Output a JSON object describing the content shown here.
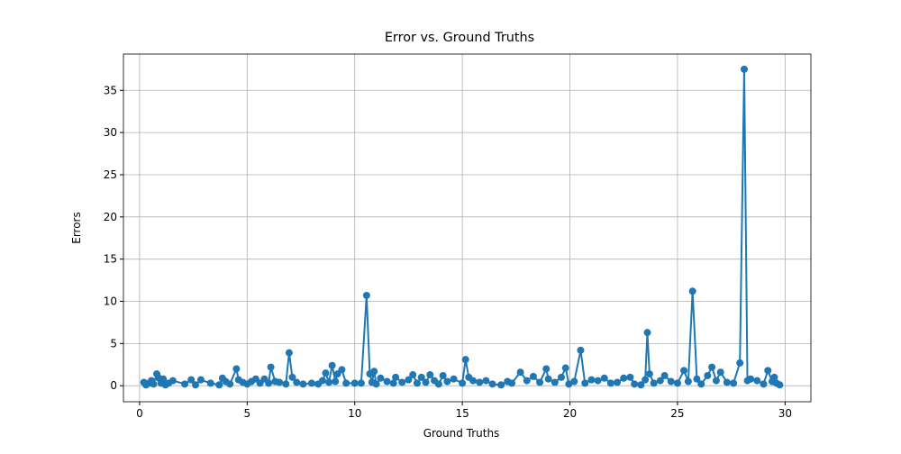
{
  "chart_data": {
    "type": "line",
    "title": "Error vs. Ground Truths",
    "xlabel": "Ground Truths",
    "ylabel": "Errors",
    "x": [
      0.2,
      0.3,
      0.45,
      0.55,
      0.65,
      0.8,
      0.9,
      1.0,
      1.1,
      1.2,
      1.35,
      1.55,
      2.1,
      2.4,
      2.6,
      2.85,
      3.3,
      3.7,
      3.85,
      4.0,
      4.2,
      4.5,
      4.6,
      4.8,
      5.0,
      5.2,
      5.4,
      5.6,
      5.8,
      6.0,
      6.1,
      6.3,
      6.5,
      6.8,
      6.95,
      7.1,
      7.3,
      7.6,
      8.0,
      8.3,
      8.5,
      8.65,
      8.8,
      8.95,
      9.1,
      9.2,
      9.4,
      9.6,
      10.0,
      10.3,
      10.55,
      10.7,
      10.8,
      10.9,
      11.0,
      11.2,
      11.5,
      11.8,
      11.9,
      12.2,
      12.5,
      12.7,
      12.9,
      13.1,
      13.3,
      13.5,
      13.7,
      13.9,
      14.1,
      14.3,
      14.6,
      15.0,
      15.15,
      15.3,
      15.5,
      15.8,
      16.1,
      16.4,
      16.8,
      17.1,
      17.3,
      17.7,
      18.0,
      18.3,
      18.6,
      18.9,
      19.0,
      19.3,
      19.6,
      19.8,
      19.95,
      20.2,
      20.5,
      20.7,
      21.0,
      21.3,
      21.6,
      21.9,
      22.2,
      22.5,
      22.8,
      23.0,
      23.3,
      23.5,
      23.6,
      23.7,
      23.9,
      24.2,
      24.4,
      24.7,
      25.0,
      25.3,
      25.5,
      25.7,
      25.9,
      26.1,
      26.4,
      26.6,
      26.8,
      27.0,
      27.3,
      27.6,
      27.9,
      28.1,
      28.25,
      28.4,
      28.7,
      29.0,
      29.2,
      29.4,
      29.5,
      29.6,
      29.75
    ],
    "series": [
      {
        "name": "Errors",
        "color": "#1f77b4",
        "values": [
          0.4,
          0.1,
          0.3,
          0.6,
          0.2,
          1.4,
          0.9,
          0.3,
          0.8,
          0.1,
          0.3,
          0.6,
          0.2,
          0.7,
          0.1,
          0.7,
          0.3,
          0.1,
          0.9,
          0.5,
          0.2,
          2.0,
          0.7,
          0.4,
          0.2,
          0.5,
          0.8,
          0.3,
          0.8,
          0.3,
          2.2,
          0.5,
          0.4,
          0.2,
          3.9,
          1.0,
          0.4,
          0.2,
          0.3,
          0.2,
          0.6,
          1.5,
          0.4,
          2.4,
          0.5,
          1.4,
          1.9,
          0.3,
          0.3,
          0.3,
          10.7,
          1.4,
          0.4,
          1.7,
          0.2,
          0.9,
          0.5,
          0.3,
          1.0,
          0.4,
          0.7,
          1.3,
          0.3,
          1.0,
          0.4,
          1.3,
          0.6,
          0.2,
          1.2,
          0.5,
          0.8,
          0.3,
          3.1,
          1.0,
          0.6,
          0.4,
          0.6,
          0.2,
          0.1,
          0.5,
          0.3,
          1.6,
          0.6,
          1.1,
          0.4,
          2.0,
          0.8,
          0.4,
          1.0,
          2.1,
          0.2,
          0.5,
          4.2,
          0.3,
          0.7,
          0.6,
          0.9,
          0.3,
          0.4,
          0.9,
          1.0,
          0.2,
          0.1,
          0.7,
          6.3,
          1.4,
          0.3,
          0.6,
          1.2,
          0.5,
          0.3,
          1.8,
          0.5,
          11.2,
          0.8,
          0.2,
          1.2,
          2.2,
          0.6,
          1.6,
          0.4,
          0.3,
          2.7,
          37.5,
          0.6,
          0.8,
          0.6,
          0.2,
          1.8,
          0.5,
          1.0,
          0.3,
          0.1
        ]
      }
    ],
    "xlim": [
      -0.75,
      31.2
    ],
    "ylim": [
      -1.9,
      39.3
    ],
    "xticks": [
      0,
      5,
      10,
      15,
      20,
      25,
      30
    ],
    "yticks": [
      0,
      5,
      10,
      15,
      20,
      25,
      30,
      35
    ],
    "grid": true
  }
}
